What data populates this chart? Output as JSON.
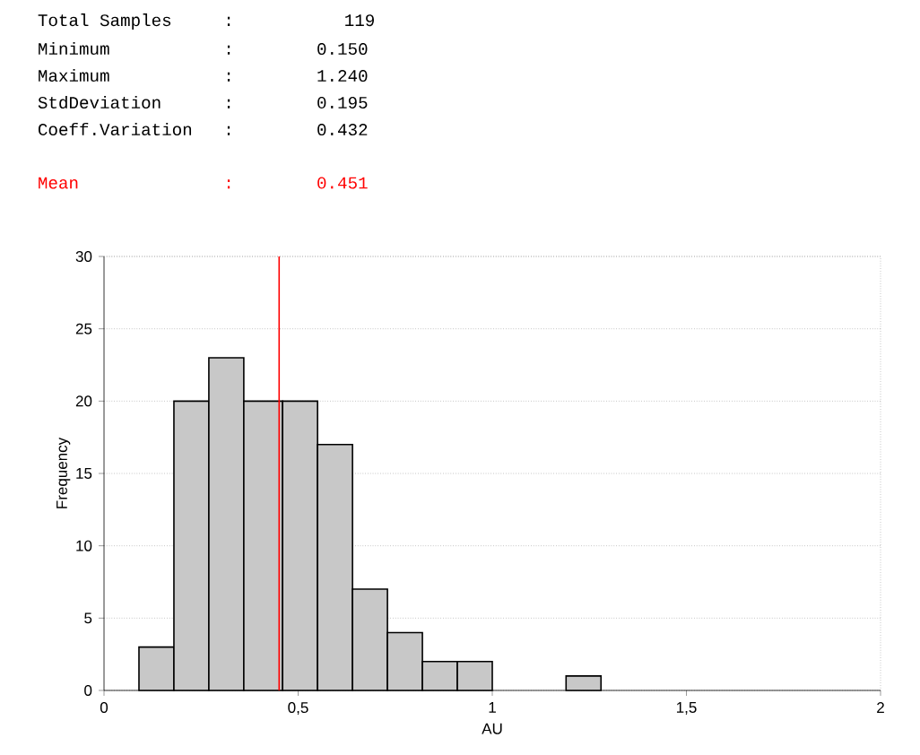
{
  "chart_data": {
    "type": "histogram",
    "bins": [
      0.09,
      0.18,
      0.27,
      0.36,
      0.46,
      0.55,
      0.64,
      0.73,
      0.82,
      0.91,
      1.0,
      1.19,
      1.28
    ],
    "values": [
      3,
      20,
      23,
      20,
      20,
      17,
      7,
      4,
      2,
      2,
      0,
      1
    ],
    "color": "#c8c8c8",
    "xlabel": "AU",
    "ylabel": "Frequency",
    "xlim": [
      0,
      2
    ],
    "ylim": [
      0,
      30
    ],
    "xticks": [
      0,
      {
        "value": 0.5,
        "label": "0,5"
      },
      1,
      {
        "value": 1.5,
        "label": "1,5"
      },
      2
    ],
    "yticks": [
      0,
      5,
      10,
      15,
      20,
      25,
      30
    ],
    "grid": "y",
    "ref_lines": [
      {
        "axis": "x",
        "value": 0.451,
        "label": "Mean              :      0.451",
        "color": "#ff0000"
      }
    ],
    "annotations": [
      "Total Samples     :        119",
      "Minimum           :      0.150",
      "Maximum           :      1.240",
      "StdDeviation      :      0.195",
      "Coeff.Variation   :      0.432"
    ]
  }
}
